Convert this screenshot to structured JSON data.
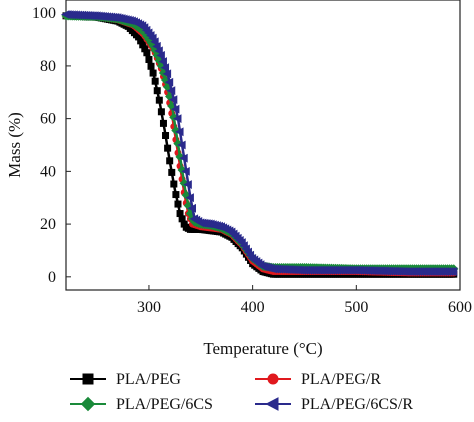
{
  "chart_data": {
    "type": "line",
    "title": "",
    "xlabel": "Temperature (°C)",
    "ylabel": "Mass (%)",
    "xlim": [
      220,
      600
    ],
    "ylim": [
      -5,
      105
    ],
    "xticks": [
      300,
      400,
      500,
      600
    ],
    "yticks": [
      0,
      20,
      40,
      60,
      80,
      100
    ],
    "xtick_labels": [
      "300",
      "400",
      "500",
      "600"
    ],
    "ytick_labels": [
      "0",
      "20",
      "40",
      "60",
      "80",
      "100"
    ],
    "grid": false,
    "legend_position": "bottom",
    "series": [
      {
        "name": "PLA/PEG",
        "color": "#000000",
        "marker": "square",
        "points": [
          [
            220,
            99
          ],
          [
            250,
            98.5
          ],
          [
            270,
            97
          ],
          [
            280,
            95
          ],
          [
            290,
            91
          ],
          [
            298,
            85
          ],
          [
            305,
            76
          ],
          [
            310,
            67
          ],
          [
            315,
            56
          ],
          [
            320,
            44
          ],
          [
            325,
            33
          ],
          [
            330,
            24
          ],
          [
            335,
            19
          ],
          [
            340,
            18
          ],
          [
            350,
            18
          ],
          [
            360,
            17.5
          ],
          [
            370,
            17
          ],
          [
            380,
            15
          ],
          [
            390,
            11
          ],
          [
            400,
            5
          ],
          [
            410,
            2
          ],
          [
            420,
            1
          ],
          [
            450,
            1
          ],
          [
            500,
            1
          ],
          [
            550,
            1
          ],
          [
            595,
            1
          ]
        ]
      },
      {
        "name": "PLA/PEG/R",
        "color": "#e0191e",
        "marker": "circle",
        "points": [
          [
            220,
            99
          ],
          [
            250,
            98.6
          ],
          [
            270,
            97.5
          ],
          [
            285,
            95.5
          ],
          [
            295,
            92
          ],
          [
            305,
            86
          ],
          [
            312,
            79
          ],
          [
            318,
            70
          ],
          [
            322,
            62
          ],
          [
            326,
            52
          ],
          [
            330,
            42
          ],
          [
            334,
            32
          ],
          [
            338,
            24
          ],
          [
            342,
            20
          ],
          [
            350,
            19
          ],
          [
            360,
            18.5
          ],
          [
            370,
            18
          ],
          [
            380,
            16
          ],
          [
            390,
            12
          ],
          [
            400,
            6
          ],
          [
            410,
            3
          ],
          [
            420,
            2
          ],
          [
            450,
            2
          ],
          [
            500,
            2
          ],
          [
            550,
            1.5
          ],
          [
            595,
            1.5
          ]
        ]
      },
      {
        "name": "PLA/PEG/6CS",
        "color": "#1a8a3a",
        "marker": "diamond",
        "points": [
          [
            220,
            99
          ],
          [
            250,
            98.7
          ],
          [
            270,
            97.8
          ],
          [
            285,
            96
          ],
          [
            295,
            93
          ],
          [
            305,
            87
          ],
          [
            312,
            80
          ],
          [
            318,
            72
          ],
          [
            323,
            63
          ],
          [
            327,
            53
          ],
          [
            331,
            43
          ],
          [
            335,
            33
          ],
          [
            339,
            25
          ],
          [
            343,
            21
          ],
          [
            350,
            20
          ],
          [
            360,
            19.5
          ],
          [
            370,
            18.5
          ],
          [
            380,
            16.5
          ],
          [
            390,
            12.5
          ],
          [
            400,
            7
          ],
          [
            410,
            4
          ],
          [
            420,
            3.5
          ],
          [
            450,
            3.5
          ],
          [
            500,
            3
          ],
          [
            550,
            3
          ],
          [
            595,
            3
          ]
        ]
      },
      {
        "name": "PLA/PEG/6CS/R",
        "color": "#2a2a8c",
        "marker": "triangle-left",
        "points": [
          [
            220,
            99.5
          ],
          [
            250,
            99
          ],
          [
            270,
            98.3
          ],
          [
            285,
            97
          ],
          [
            295,
            95
          ],
          [
            305,
            90
          ],
          [
            312,
            84
          ],
          [
            318,
            77
          ],
          [
            323,
            69
          ],
          [
            328,
            60
          ],
          [
            332,
            50
          ],
          [
            336,
            40
          ],
          [
            340,
            30
          ],
          [
            344,
            22
          ],
          [
            350,
            20.5
          ],
          [
            360,
            20
          ],
          [
            370,
            19
          ],
          [
            380,
            17
          ],
          [
            390,
            13
          ],
          [
            400,
            7
          ],
          [
            410,
            4
          ],
          [
            420,
            3
          ],
          [
            450,
            2.5
          ],
          [
            500,
            2.5
          ],
          [
            550,
            2
          ],
          [
            595,
            2
          ]
        ]
      }
    ]
  }
}
